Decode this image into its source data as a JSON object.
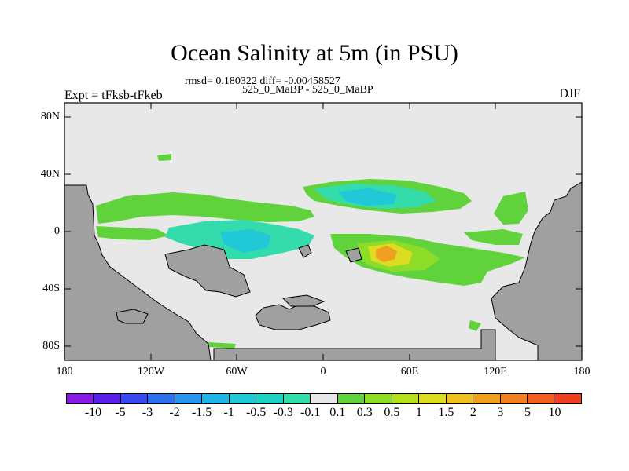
{
  "title": "Ocean Salinity at 5m (in PSU)",
  "subtitle_stats": "rmsd= 0.180322 diff= -0.00458527",
  "subtitle_dates": "525_0_MaBP - 525_0_MaBP",
  "experiment": "Expt = tFksb-tFkeb",
  "season": "DJF",
  "axes": {
    "lat_ticks": [
      "80N",
      "40N",
      "0",
      "40S",
      "80S"
    ],
    "lon_ticks": [
      "180",
      "120W",
      "60W",
      "0",
      "60E",
      "120E",
      "180"
    ]
  },
  "colors": {
    "land": "#a0a0a0",
    "near_zero": "#e8e8e8",
    "coast": "#000000"
  },
  "colorbar": {
    "colors": [
      "#8a1be0",
      "#5a20e8",
      "#3a48f0",
      "#2c70ec",
      "#2a94ee",
      "#20b4e8",
      "#20c8d8",
      "#20d2c4",
      "#34dcac",
      "#e8e8e8",
      "#60d23c",
      "#8cdc28",
      "#b4e020",
      "#dcdc20",
      "#f0c020",
      "#f0a020",
      "#f08020",
      "#f06020",
      "#ec4020"
    ],
    "labels": [
      "-10",
      "-5",
      "-3",
      "-2",
      "-1.5",
      "-1",
      "-0.5",
      "-0.3",
      "-0.1",
      "0.1",
      "0.3",
      "0.5",
      "1",
      "1.5",
      "2",
      "3",
      "5",
      "10"
    ]
  }
}
